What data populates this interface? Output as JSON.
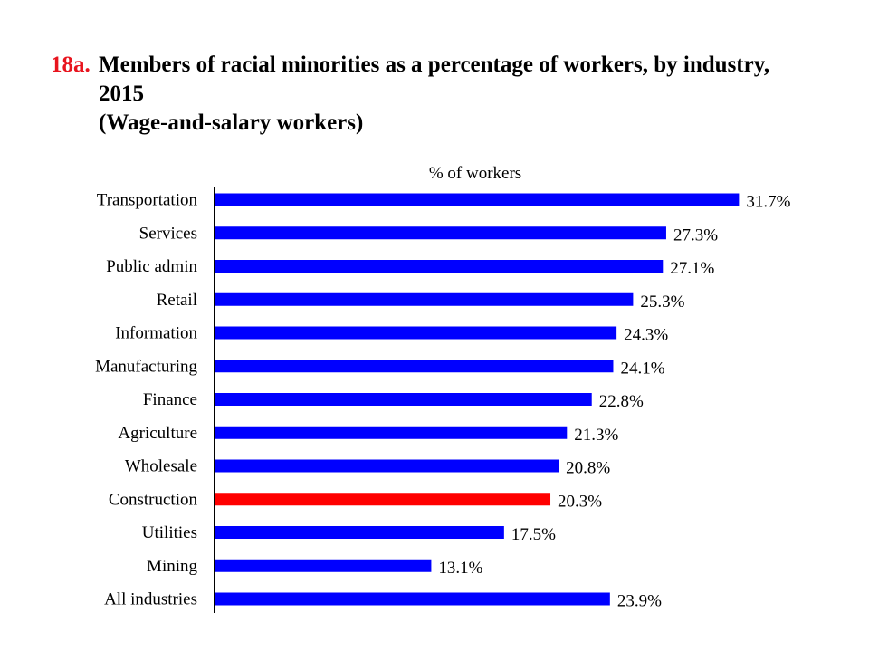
{
  "title": {
    "number": "18a.",
    "line1": "Members of racial minorities as a percentage of workers, by industry,",
    "line2": "2015",
    "subtitle": "(Wage-and-salary workers)"
  },
  "colors": {
    "title_number": "#e8141e",
    "bar_default": "#0000ff",
    "bar_highlight": "#ff0000"
  },
  "chart_data": {
    "type": "bar",
    "orientation": "horizontal",
    "xlabel": "% of workers",
    "xlim": [
      0,
      32.5
    ],
    "grid": false,
    "legend": "none",
    "highlight_category": "Construction",
    "categories": [
      "Transportation",
      "Services",
      "Public admin",
      "Retail",
      "Information",
      "Manufacturing",
      "Finance",
      "Agriculture",
      "Wholesale",
      "Construction",
      "Utilities",
      "Mining",
      "All industries"
    ],
    "values": [
      31.7,
      27.3,
      27.1,
      25.3,
      24.3,
      24.1,
      22.8,
      21.3,
      20.8,
      20.3,
      17.5,
      13.1,
      23.9
    ],
    "value_labels": [
      "31.7%",
      "27.3%",
      "27.1%",
      "25.3%",
      "24.3%",
      "24.1%",
      "22.8%",
      "21.3%",
      "20.8%",
      "20.3%",
      "17.5%",
      "13.1%",
      "23.9%"
    ]
  }
}
